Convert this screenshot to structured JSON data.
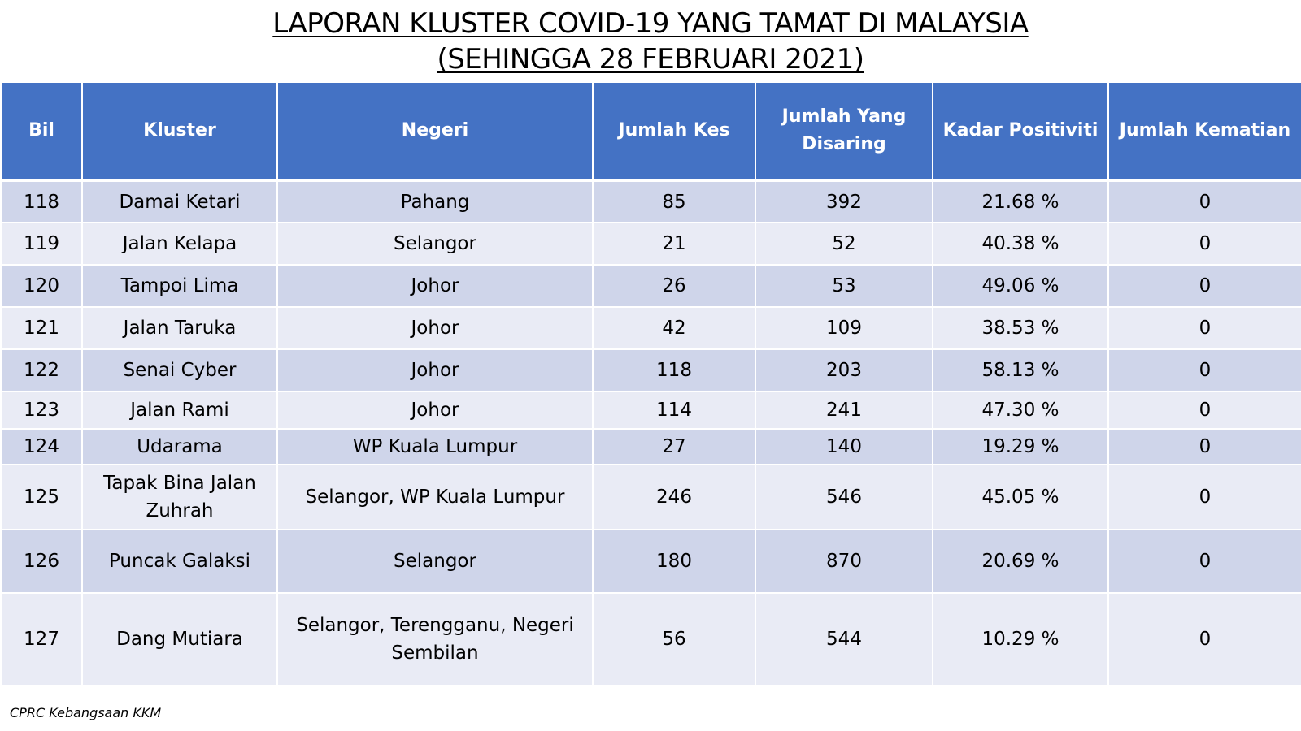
{
  "title_line1": "LAPORAN KLUSTER COVID-19 YANG TAMAT DI MALAYSIA",
  "title_line2": "(SEHINGGA  28 FEBRUARI 2021)",
  "columns": [
    "Bil",
    "Kluster",
    "Negeri",
    "Jumlah Kes",
    "Jumlah Yang Disaring",
    "Kadar Positiviti",
    "Jumlah Kematian"
  ],
  "rows": [
    [
      "118",
      "Damai Ketari",
      "Pahang",
      "85",
      "392",
      "21.68 %",
      "0"
    ],
    [
      "119",
      "Jalan Kelapa",
      "Selangor",
      "21",
      "52",
      "40.38 %",
      "0"
    ],
    [
      "120",
      "Tampoi Lima",
      "Johor",
      "26",
      "53",
      "49.06 %",
      "0"
    ],
    [
      "121",
      "Jalan Taruka",
      "Johor",
      "42",
      "109",
      "38.53 %",
      "0"
    ],
    [
      "122",
      "Senai Cyber",
      "Johor",
      "118",
      "203",
      "58.13 %",
      "0"
    ],
    [
      "123",
      "Jalan Rami",
      "Johor",
      "114",
      "241",
      "47.30 %",
      "0"
    ],
    [
      "124",
      "Udarama",
      "WP Kuala Lumpur",
      "27",
      "140",
      "19.29 %",
      "0"
    ],
    [
      "125",
      "Tapak Bina Jalan Zuhrah",
      "Selangor, WP Kuala Lumpur",
      "246",
      "546",
      "45.05 %",
      "0"
    ],
    [
      "126",
      "Puncak Galaksi",
      "Selangor",
      "180",
      "870",
      "20.69 %",
      "0"
    ],
    [
      "127",
      "Dang Mutiara",
      "Selangor, Terengganu, Negeri Sembilan",
      "56",
      "544",
      "10.29 %",
      "0"
    ]
  ],
  "footer": "CPRC Kebangsaan KKM"
}
